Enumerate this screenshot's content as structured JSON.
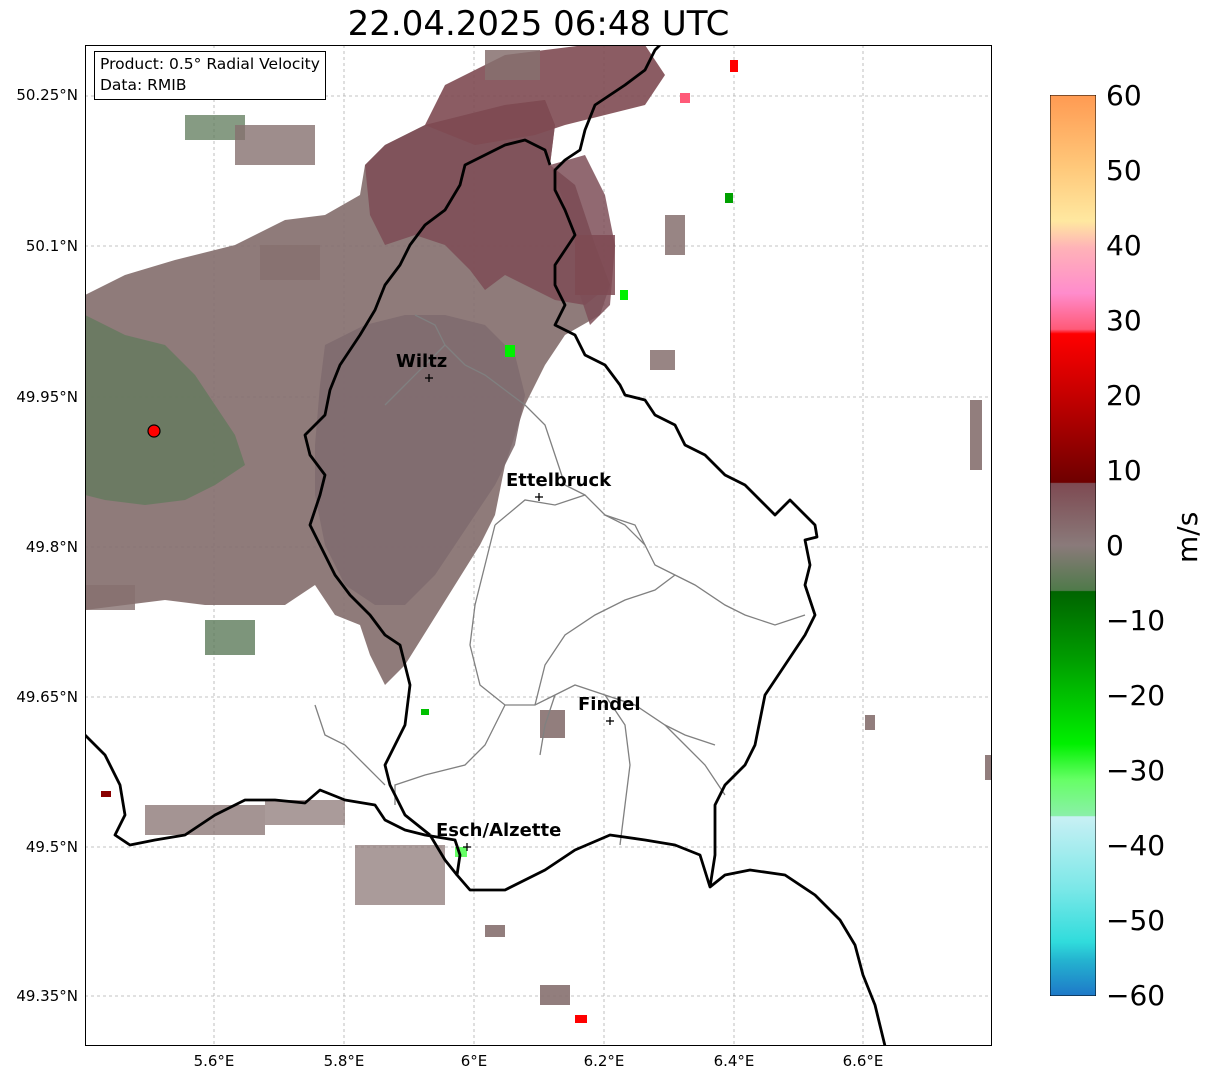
{
  "title": "22.04.2025 06:48 UTC",
  "info": {
    "product": "Product: 0.5° Radial Velocity",
    "data_source": "Data: RMIB"
  },
  "map": {
    "y_ticks": [
      "50.25°N",
      "50.1°N",
      "49.95°N",
      "49.8°N",
      "49.65°N",
      "49.5°N",
      "49.35°N"
    ],
    "x_ticks": [
      "5.6°E",
      "5.8°E",
      "6°E",
      "6.2°E",
      "6.4°E",
      "6.6°E"
    ],
    "extent": {
      "lon": [
        5.4,
        6.8
      ],
      "lat": [
        49.3,
        50.3
      ]
    },
    "radar_site": {
      "lon": 5.505,
      "lat": 49.914
    },
    "cities": [
      {
        "name": "Wiltz",
        "lon": 5.93,
        "lat": 49.967
      },
      {
        "name": "Ettelbruck",
        "lon": 6.1,
        "lat": 49.847
      },
      {
        "name": "Findel",
        "lon": 6.21,
        "lat": 49.627
      },
      {
        "name": "Esch/Alzette",
        "lon": 5.99,
        "lat": 49.5
      }
    ],
    "colors": {
      "border": "#000000",
      "cantons": "#808080",
      "grid": "#b0b0b0",
      "echo_brown": "#7d5a62",
      "echo_gray": "#8a7274",
      "echo_green": "#5d7a5a",
      "radar_marker": "#ff0000"
    }
  },
  "colorbar": {
    "label": "m/s",
    "min": -60,
    "max": 60,
    "ticks": [
      "60",
      "50",
      "40",
      "30",
      "20",
      "10",
      "0",
      "−10",
      "−20",
      "−30",
      "−40",
      "−50",
      "−60"
    ],
    "stops": [
      "#ff9a52",
      "#ffc87a",
      "#ffe8a0",
      "#ffb2b8",
      "#ff8ccc",
      "#ff5a78",
      "#ff0000",
      "#c80000",
      "#6e0000",
      "#7e4a52",
      "#8a7a7a",
      "#4f7a4a",
      "#006400",
      "#00a000",
      "#00f000",
      "#66ff66",
      "#8af0a8",
      "#c8f0f4",
      "#7ce8e8",
      "#30dcdc",
      "#1e78c8"
    ]
  }
}
